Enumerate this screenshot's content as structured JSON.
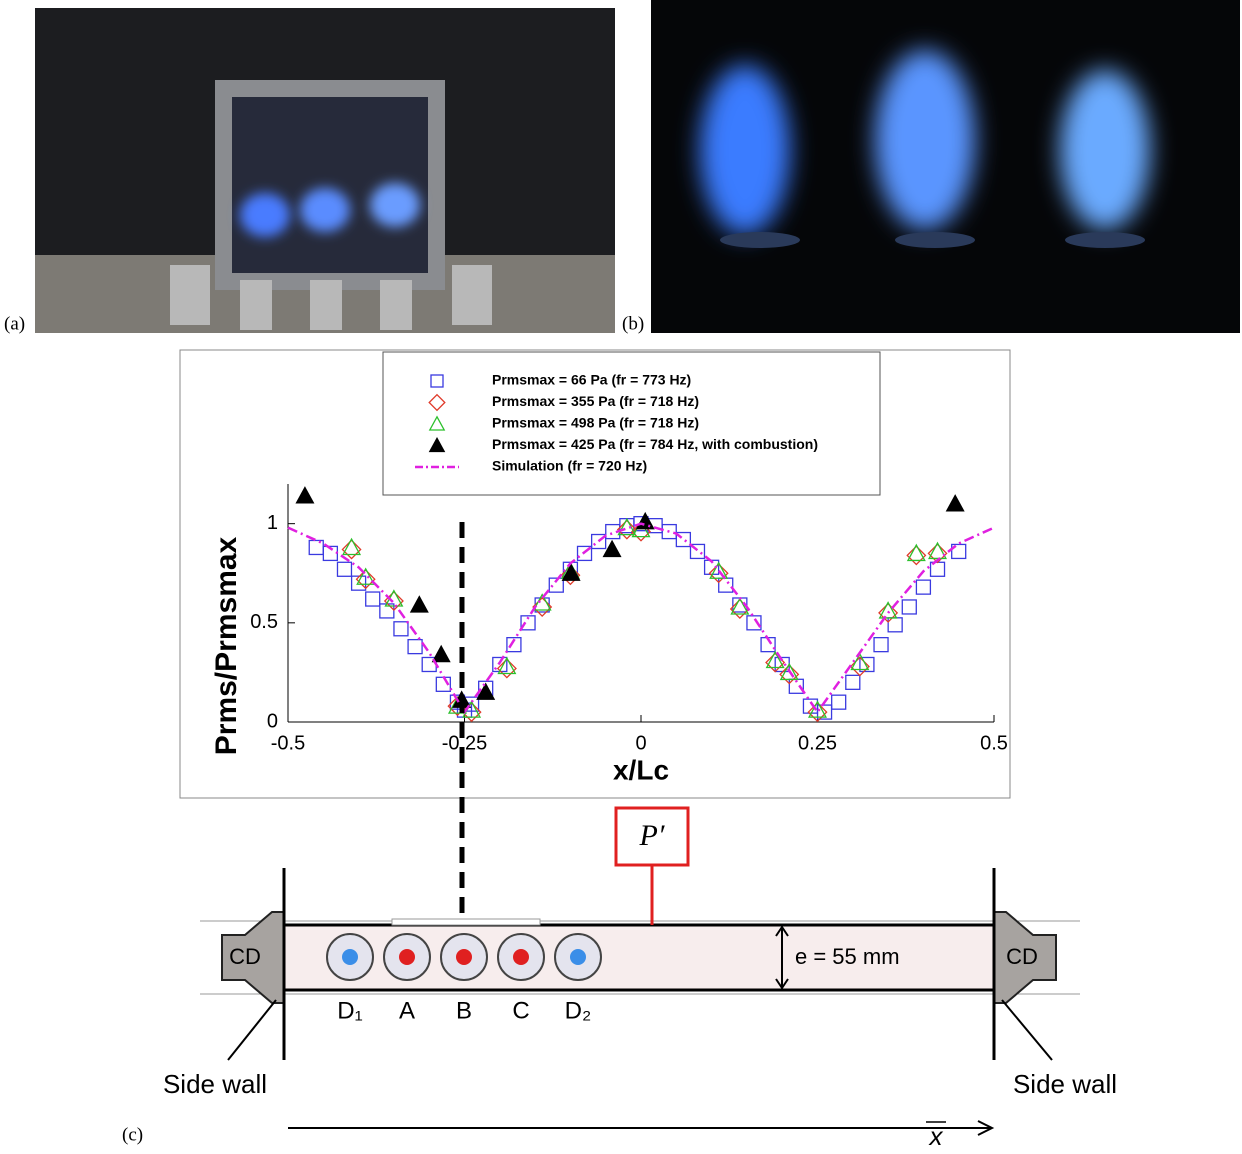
{
  "panels": [
    "(a)",
    "(b)",
    "(c)"
  ],
  "chart_data": {
    "type": "scatter",
    "xlabel": "x/Lc",
    "ylabel": "Prms/Prmsmax",
    "xlim": [
      -0.5,
      0.5
    ],
    "ylim": [
      0,
      1.2
    ],
    "xticks": [
      -0.5,
      -0.25,
      0,
      0.25,
      0.5
    ],
    "yticks": [
      0,
      0.5,
      1
    ],
    "series": [
      {
        "name": "Prmsmax = 66 Pa (fr = 773 Hz)",
        "color": "#3a3ae0",
        "marker": "square",
        "x": [
          -0.46,
          -0.44,
          -0.42,
          -0.4,
          -0.38,
          -0.36,
          -0.34,
          -0.32,
          -0.3,
          -0.28,
          -0.26,
          -0.25,
          -0.24,
          -0.22,
          -0.2,
          -0.18,
          -0.16,
          -0.14,
          -0.12,
          -0.1,
          -0.08,
          -0.06,
          -0.04,
          -0.02,
          0,
          0.02,
          0.04,
          0.06,
          0.08,
          0.1,
          0.12,
          0.14,
          0.16,
          0.18,
          0.2,
          0.22,
          0.24,
          0.26,
          0.28,
          0.3,
          0.32,
          0.34,
          0.36,
          0.38,
          0.4,
          0.42,
          0.45
        ],
        "values": [
          0.88,
          0.85,
          0.77,
          0.7,
          0.62,
          0.56,
          0.47,
          0.38,
          0.29,
          0.19,
          0.1,
          0.06,
          0.09,
          0.17,
          0.29,
          0.39,
          0.5,
          0.59,
          0.69,
          0.77,
          0.85,
          0.91,
          0.96,
          0.99,
          1.0,
          0.99,
          0.96,
          0.92,
          0.86,
          0.78,
          0.69,
          0.59,
          0.5,
          0.39,
          0.29,
          0.18,
          0.08,
          0.05,
          0.1,
          0.2,
          0.29,
          0.39,
          0.49,
          0.58,
          0.68,
          0.77,
          0.86
        ]
      },
      {
        "name": "Prmsmax = 355 Pa (fr = 718 Hz)",
        "color": "#e03a2a",
        "marker": "diamond",
        "x": [
          -0.41,
          -0.39,
          -0.35,
          -0.26,
          -0.24,
          -0.19,
          -0.14,
          -0.1,
          -0.02,
          0.0,
          0.11,
          0.14,
          0.19,
          0.21,
          0.25,
          0.31,
          0.35,
          0.39,
          0.42
        ],
        "values": [
          0.87,
          0.72,
          0.61,
          0.08,
          0.05,
          0.27,
          0.58,
          0.74,
          0.97,
          0.96,
          0.75,
          0.57,
          0.3,
          0.24,
          0.05,
          0.28,
          0.55,
          0.84,
          0.85
        ]
      },
      {
        "name": "Prmsmax = 498 Pa (fr = 718 Hz)",
        "color": "#2cc02c",
        "marker": "triangle",
        "x": [
          -0.41,
          -0.39,
          -0.35,
          -0.26,
          -0.24,
          -0.19,
          -0.14,
          -0.1,
          -0.02,
          0.0,
          0.11,
          0.14,
          0.19,
          0.21,
          0.25,
          0.31,
          0.35,
          0.39,
          0.42
        ],
        "values": [
          0.88,
          0.73,
          0.62,
          0.08,
          0.06,
          0.28,
          0.6,
          0.76,
          0.98,
          0.97,
          0.76,
          0.58,
          0.31,
          0.25,
          0.06,
          0.3,
          0.56,
          0.85,
          0.86
        ]
      },
      {
        "name": "Prmsmax = 425 Pa (fr = 784 Hz, with combustion)",
        "color": "#000000",
        "marker": "filled-triangle",
        "x": [
          -0.476,
          -0.314,
          -0.283,
          -0.254,
          -0.22,
          -0.099,
          -0.041,
          0.006,
          0.445
        ],
        "values": [
          1.14,
          0.59,
          0.34,
          0.11,
          0.15,
          0.75,
          0.87,
          1.01,
          1.1
        ]
      },
      {
        "name": "Simulation (fr = 720 Hz)",
        "color": "#e020e0",
        "marker": "line",
        "x": [
          -0.5,
          -0.45,
          -0.4,
          -0.35,
          -0.3,
          -0.25,
          -0.2,
          -0.15,
          -0.1,
          -0.05,
          0,
          0.05,
          0.1,
          0.15,
          0.2,
          0.25,
          0.3,
          0.35,
          0.4,
          0.45,
          0.5
        ],
        "values": [
          0.98,
          0.9,
          0.78,
          0.6,
          0.35,
          0.05,
          0.3,
          0.58,
          0.8,
          0.94,
          1.0,
          0.95,
          0.81,
          0.58,
          0.31,
          0.05,
          0.3,
          0.55,
          0.76,
          0.9,
          0.98
        ]
      }
    ]
  },
  "diagram": {
    "probe": "P′",
    "end_caps": [
      "CD",
      "CD"
    ],
    "height_label": "e = 55 mm",
    "injectors": [
      "D₁",
      "A",
      "B",
      "C",
      "D₂"
    ],
    "side_walls": [
      "Side wall",
      "Side wall"
    ],
    "axis_label": "x"
  }
}
